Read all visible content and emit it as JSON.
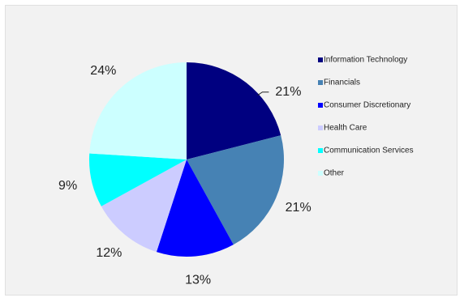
{
  "chart_data": {
    "type": "pie",
    "title": "",
    "slices": [
      {
        "label": "Information Technology",
        "value": 21,
        "display": "21%",
        "color": "#000080"
      },
      {
        "label": "Financials",
        "value": 21,
        "display": "21%",
        "color": "#4682b4"
      },
      {
        "label": "Consumer Discretionary",
        "value": 13,
        "display": "13%",
        "color": "#0000ff"
      },
      {
        "label": "Health Care",
        "value": 12,
        "display": "12%",
        "color": "#ccccff"
      },
      {
        "label": "Communication Services",
        "value": 9,
        "display": "9%",
        "color": "#00ffff"
      },
      {
        "label": "Other",
        "value": 24,
        "display": "24%",
        "color": "#ccffff"
      }
    ],
    "legend_position": "right",
    "start_angle_deg": 0,
    "direction": "clockwise"
  }
}
